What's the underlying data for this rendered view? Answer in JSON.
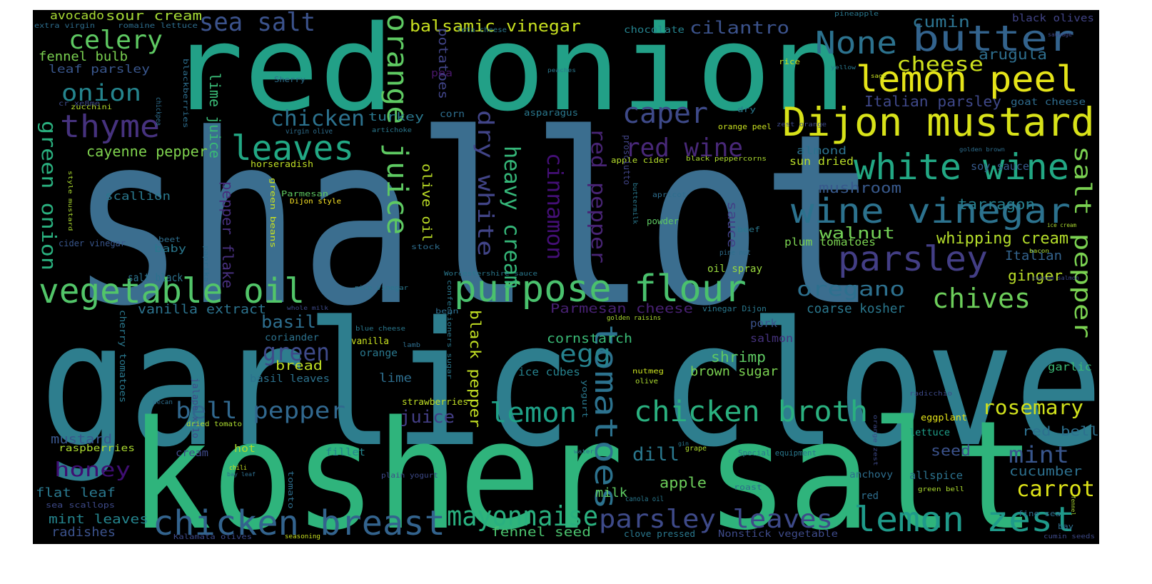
{
  "words": [
    {
      "text": "shallot",
      "color": "#3b6e8f"
    },
    {
      "text": "garlic clove",
      "color": "#2e7e8e"
    },
    {
      "text": "kosher salt",
      "color": "#2fb47c"
    },
    {
      "text": "red onion",
      "color": "#22a087"
    },
    {
      "text": "Dijon mustard",
      "color": "#d8e219"
    },
    {
      "text": "purpose flour",
      "color": "#4ac16d"
    },
    {
      "text": "chicken breast",
      "color": "#33638d"
    },
    {
      "text": "lemon zest",
      "color": "#1f9a8a"
    },
    {
      "text": "vegetable oil",
      "color": "#52c569"
    },
    {
      "text": "chicken broth",
      "color": "#2ab07f"
    },
    {
      "text": "butter",
      "color": "#33638d"
    },
    {
      "text": "lemon peel",
      "color": "#e5e419"
    },
    {
      "text": "white wine",
      "color": "#22a884"
    },
    {
      "text": "wine vinegar",
      "color": "#2c728e"
    },
    {
      "text": "parsley leaves",
      "color": "#3e4a89"
    },
    {
      "text": "orange juice",
      "color": "#5ec962"
    },
    {
      "text": "tomatoes",
      "color": "#2c728e"
    },
    {
      "text": "parsley",
      "color": "#433e85"
    },
    {
      "text": "None",
      "color": "#2c728e"
    },
    {
      "text": "caper",
      "color": "#3e4a89"
    },
    {
      "text": "leaves",
      "color": "#22a884"
    },
    {
      "text": "thyme",
      "color": "#46327e"
    },
    {
      "text": "mayonnaise",
      "color": "#2ab07f"
    },
    {
      "text": "celery",
      "color": "#5ec962"
    },
    {
      "text": "sea salt",
      "color": "#3b528b"
    },
    {
      "text": "red wine",
      "color": "#482878"
    },
    {
      "text": "bell pepper",
      "color": "#31688e"
    },
    {
      "text": "lemon",
      "color": "#1fa187"
    },
    {
      "text": "chives",
      "color": "#6ccd5a"
    },
    {
      "text": "salt pepper",
      "color": "#7ad151"
    },
    {
      "text": "dry white",
      "color": "#414487"
    },
    {
      "text": "heavy cream",
      "color": "#35b779"
    },
    {
      "text": "cinnamon",
      "color": "#440f76"
    },
    {
      "text": "red pepper",
      "color": "#482475"
    },
    {
      "text": "egg",
      "color": "#26828e"
    },
    {
      "text": "green",
      "color": "#3e4a89"
    },
    {
      "text": "onion",
      "color": "#25858e"
    },
    {
      "text": "chicken",
      "color": "#2c728e"
    },
    {
      "text": "green onion",
      "color": "#2ab07f"
    },
    {
      "text": "oregano",
      "color": "#2d708e"
    },
    {
      "text": "rosemary",
      "color": "#d0e11c"
    },
    {
      "text": "carrot",
      "color": "#dde318"
    },
    {
      "text": "mint",
      "color": "#39568c"
    },
    {
      "text": "honey",
      "color": "#3f0e72"
    },
    {
      "text": "cheese",
      "color": "#cde11d"
    },
    {
      "text": "balsamic vinegar",
      "color": "#c8e020"
    },
    {
      "text": "cilantro",
      "color": "#3b528b"
    },
    {
      "text": "cumin",
      "color": "#2c728e"
    },
    {
      "text": "dill",
      "color": "#2a788e"
    },
    {
      "text": "basil",
      "color": "#2e6e8e"
    },
    {
      "text": "juice",
      "color": "#433e85"
    },
    {
      "text": "black pepper",
      "color": "#c2df23"
    },
    {
      "text": "lime juice",
      "color": "#3aba76"
    },
    {
      "text": "pepper flake",
      "color": "#472f7d"
    },
    {
      "text": "olive oil",
      "color": "#bddf26"
    },
    {
      "text": "potatoes",
      "color": "#414487"
    },
    {
      "text": "sauce",
      "color": "#424086"
    },
    {
      "text": "walnut",
      "color": "#73d056"
    },
    {
      "text": "whipping cream",
      "color": "#b5de2b"
    },
    {
      "text": "cayenne pepper",
      "color": "#7fd34e"
    },
    {
      "text": "mushroom",
      "color": "#38598c"
    },
    {
      "text": "tarragon",
      "color": "#277f8e"
    },
    {
      "text": "arugula",
      "color": "#2e6e8e"
    },
    {
      "text": "Italian parsley",
      "color": "#3f4889"
    },
    {
      "text": "ginger",
      "color": "#bade28"
    },
    {
      "text": "Italian",
      "color": "#33638d"
    },
    {
      "text": "coarse kosher",
      "color": "#2a788e"
    },
    {
      "text": "vanilla extract",
      "color": "#2c738e"
    },
    {
      "text": "Parmesan cheese",
      "color": "#482173"
    },
    {
      "text": "cornstarch",
      "color": "#3aba76"
    },
    {
      "text": "shrimp",
      "color": "#5ec962"
    },
    {
      "text": "brown sugar",
      "color": "#7ad151"
    },
    {
      "text": "bread",
      "color": "#c0df25"
    },
    {
      "text": "salt black",
      "color": "#2c728e"
    },
    {
      "text": "fennel bulb",
      "color": "#7ad151"
    },
    {
      "text": "leaf parsley",
      "color": "#39568c"
    },
    {
      "text": "sour cream",
      "color": "#a5db36"
    },
    {
      "text": "avocado",
      "color": "#a8db34"
    },
    {
      "text": "scallion",
      "color": "#2a788e"
    },
    {
      "text": "turkey",
      "color": "#2a788e"
    },
    {
      "text": "red bell",
      "color": "#2d708e"
    },
    {
      "text": "seed",
      "color": "#3b528b"
    },
    {
      "text": "cucumber",
      "color": "#2d708e"
    },
    {
      "text": "apple",
      "color": "#6ccd5a"
    },
    {
      "text": "fennel seed",
      "color": "#4ac16d"
    },
    {
      "text": "flat leaf",
      "color": "#2a788e"
    },
    {
      "text": "mint leaves",
      "color": "#25858e"
    },
    {
      "text": "radishes",
      "color": "#3b528b"
    },
    {
      "text": "mustard",
      "color": "#39568c"
    },
    {
      "text": "milk",
      "color": "#5ec962"
    },
    {
      "text": "lime",
      "color": "#2e6e8e"
    },
    {
      "text": "pork",
      "color": "#3b528b"
    },
    {
      "text": "salmon",
      "color": "#46327e"
    },
    {
      "text": "almond",
      "color": "#2c728e"
    },
    {
      "text": "soy sauce",
      "color": "#375a8c"
    },
    {
      "text": "sun dried",
      "color": "#bade28"
    },
    {
      "text": "plum tomatoes",
      "color": "#7ad151"
    },
    {
      "text": "oil spray",
      "color": "#98d83e"
    },
    {
      "text": "basil leaves",
      "color": "#2c728e"
    },
    {
      "text": "vanilla",
      "color": "#c8e020"
    },
    {
      "text": "ice cubes",
      "color": "#26828e"
    },
    {
      "text": "goat cheese",
      "color": "#2f6c8e"
    },
    {
      "text": "chocolate",
      "color": "#25838e"
    },
    {
      "text": "black olives",
      "color": "#414487"
    },
    {
      "text": "allspice",
      "color": "#2c728e"
    },
    {
      "text": "lettuce",
      "color": "#1f9e89"
    },
    {
      "text": "garlic",
      "color": "#3aba76"
    },
    {
      "text": "coriander",
      "color": "#2c728e"
    },
    {
      "text": "orange",
      "color": "#2a788e"
    },
    {
      "text": "hot",
      "color": "#addc30"
    },
    {
      "text": "cream",
      "color": "#3e4a89"
    },
    {
      "text": "raspberries",
      "color": "#addc30"
    },
    {
      "text": "fillet",
      "color": "#25858e"
    },
    {
      "text": "anchovy",
      "color": "#2e6e8e"
    },
    {
      "text": "red",
      "color": "#2e6e8e"
    },
    {
      "text": "eggplant",
      "color": "#e5e419"
    },
    {
      "text": "baby",
      "color": "#2a788e"
    },
    {
      "text": "corn",
      "color": "#2e6e8e"
    },
    {
      "text": "pea",
      "color": "#481769"
    },
    {
      "text": "asparagus",
      "color": "#2a788e"
    },
    {
      "text": "strawberries",
      "color": "#c0df25"
    },
    {
      "text": "beef",
      "color": "#2a788e"
    },
    {
      "text": "apple cider",
      "color": "#b5de2b"
    },
    {
      "text": "horseradish",
      "color": "#c0df25"
    },
    {
      "text": "Parmesan",
      "color": "#5ec962"
    },
    {
      "text": "Dijon style",
      "color": "#fde725"
    },
    {
      "text": "prosciutto",
      "color": "#414487"
    },
    {
      "text": "powder",
      "color": "#5ec962"
    },
    {
      "text": "cider vinegar",
      "color": "#39568c"
    },
    {
      "text": "zucchini",
      "color": "#b5de2b"
    },
    {
      "text": "Sherry",
      "color": "#2e6e8e"
    },
    {
      "text": "romaine lettuce",
      "color": "#2e6e8e"
    },
    {
      "text": "extra virgin",
      "color": "#2e6e8e"
    },
    {
      "text": "feta cheese",
      "color": "#2a788e"
    },
    {
      "text": "pineapple",
      "color": "#2a788e"
    },
    {
      "text": "sausage",
      "color": "#3f4889"
    },
    {
      "text": "rice",
      "color": "#c8e020"
    },
    {
      "text": "yellow",
      "color": "#2a788e"
    },
    {
      "text": "sage",
      "color": "#c8e020"
    },
    {
      "text": "peaches",
      "color": "#2a788e"
    },
    {
      "text": "dry",
      "color": "#2a788e"
    },
    {
      "text": "orange peel",
      "color": "#c8e020"
    },
    {
      "text": "zest orange",
      "color": "#3e4a89"
    },
    {
      "text": "golden brown",
      "color": "#2e6e8e"
    },
    {
      "text": "black peppercorns",
      "color": "#addc30"
    },
    {
      "text": "apricot",
      "color": "#2e6e8e"
    },
    {
      "text": "buttermilk",
      "color": "#2a788e"
    },
    {
      "text": "pine nut",
      "color": "#2e6e8e"
    },
    {
      "text": "Worcestershire sauce",
      "color": "#2a788e"
    },
    {
      "text": "rice vinegar",
      "color": "#2a788e"
    },
    {
      "text": "confectioners sugar",
      "color": "#2a788e"
    },
    {
      "text": "bean",
      "color": "#2e6e8e"
    },
    {
      "text": "blue cheese",
      "color": "#2a788e"
    },
    {
      "text": "whole milk",
      "color": "#3e4a89"
    },
    {
      "text": "lamb",
      "color": "#2e6e8e"
    },
    {
      "text": "golden raisins",
      "color": "#addc30"
    },
    {
      "text": "vinegar Dijon",
      "color": "#2a788e"
    },
    {
      "text": "stock",
      "color": "#2e6e8e"
    },
    {
      "text": "bacon",
      "color": "#addc30"
    },
    {
      "text": "canned salmon",
      "color": "#3e4a89"
    },
    {
      "text": "ice cream",
      "color": "#addc30"
    },
    {
      "text": "nutmeg",
      "color": "#c8e020"
    },
    {
      "text": "olive",
      "color": "#addc30"
    },
    {
      "text": "yogurt",
      "color": "#2a788e"
    },
    {
      "text": "radicchio",
      "color": "#3e4a89"
    },
    {
      "text": "cherry tomatoes",
      "color": "#2a788e"
    },
    {
      "text": "jalape xf1o",
      "color": "#3e4a89"
    },
    {
      "text": "pecan",
      "color": "#2e6e8e"
    },
    {
      "text": "dried tomato",
      "color": "#addc30"
    },
    {
      "text": "chili",
      "color": "#c8e020"
    },
    {
      "text": "bay leaf",
      "color": "#2e6e8e"
    },
    {
      "text": "tomato",
      "color": "#2e6e8e"
    },
    {
      "text": "plain yogurt",
      "color": "#3e4a89"
    },
    {
      "text": "water",
      "color": "#2e6e8e"
    },
    {
      "text": "grape",
      "color": "#addc30"
    },
    {
      "text": "gin",
      "color": "#2a788e"
    },
    {
      "text": "Special equipment",
      "color": "#2a788e"
    },
    {
      "text": "orange zest",
      "color": "#3e4a89"
    },
    {
      "text": "roast",
      "color": "#2e6e8e"
    },
    {
      "text": "green bell",
      "color": "#addc30"
    },
    {
      "text": "canola oil",
      "color": "#2a788e"
    },
    {
      "text": "fine sea",
      "color": "#2e6e8e"
    },
    {
      "text": "fennel",
      "color": "#addc30"
    },
    {
      "text": "bay",
      "color": "#2e6e8e"
    },
    {
      "text": "cumin seeds",
      "color": "#3e4a89"
    },
    {
      "text": "clove pressed",
      "color": "#2a788e"
    },
    {
      "text": "Nonstick vegetable",
      "color": "#3e4a89"
    },
    {
      "text": "seasoning",
      "color": "#c8e020"
    },
    {
      "text": "Kalamata olives",
      "color": "#3e4a89"
    },
    {
      "text": "sea scallops",
      "color": "#3e4a89"
    },
    {
      "text": "paprika",
      "color": "#2e6e8e"
    },
    {
      "text": "beet",
      "color": "#2e6e8e"
    },
    {
      "text": "green beans",
      "color": "#c8e020"
    },
    {
      "text": "style mustard",
      "color": "#addc30"
    },
    {
      "text": "virgin olive",
      "color": "#2e6e8e"
    },
    {
      "text": "artichoke",
      "color": "#2a788e"
    },
    {
      "text": "blackberries",
      "color": "#2e6e8e"
    },
    {
      "text": "chickpea",
      "color": "#2e6e8e"
    },
    {
      "text": "cr xe8me",
      "color": "#3e4a89"
    }
  ]
}
